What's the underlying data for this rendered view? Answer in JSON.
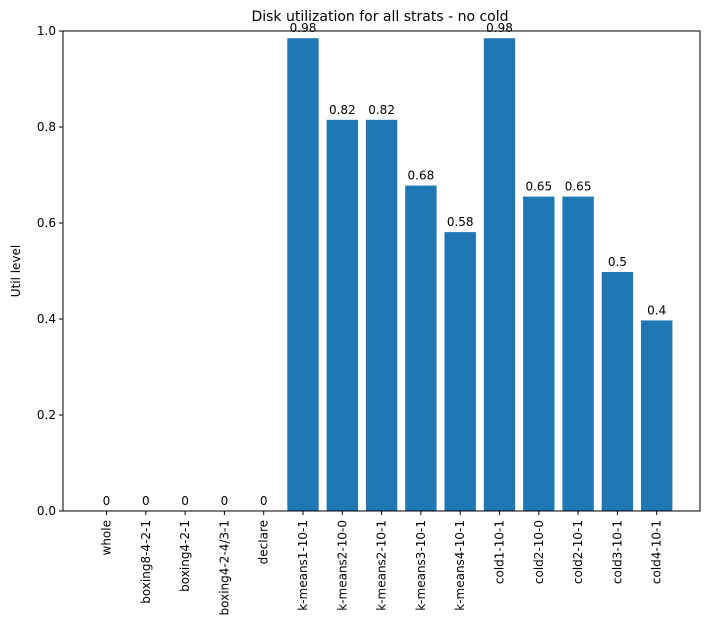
{
  "chart_data": {
    "type": "bar",
    "title": "Disk utilization for all strats - no cold",
    "xlabel": "",
    "ylabel": "Util level",
    "ylim": [
      0,
      1.0
    ],
    "yticks": [
      "0.0",
      "0.2",
      "0.4",
      "0.6",
      "0.8",
      "1.0"
    ],
    "ytick_values": [
      0,
      0.2,
      0.4,
      0.6,
      0.8,
      1.0
    ],
    "categories": [
      "whole",
      "boxing8-4-2-1",
      "boxing4-2-1",
      "boxing4-2-4/3-1",
      "declare",
      "k-means1-10-1",
      "k-means2-10-0",
      "k-means2-10-1",
      "k-means3-10-1",
      "k-means4-10-1",
      "cold1-10-1",
      "cold2-10-0",
      "cold2-10-1",
      "cold3-10-1",
      "cold4-10-1"
    ],
    "values": [
      0,
      0,
      0,
      0,
      0,
      0.985,
      0.815,
      0.815,
      0.678,
      0.581,
      0.985,
      0.655,
      0.655,
      0.498,
      0.397
    ],
    "data_labels": [
      "0",
      "0",
      "0",
      "0",
      "0",
      "0.98",
      "0.82",
      "0.82",
      "0.68",
      "0.58",
      "0.98",
      "0.65",
      "0.65",
      "0.5",
      "0.4"
    ],
    "bar_color": "#1f77b4",
    "grid": false
  }
}
